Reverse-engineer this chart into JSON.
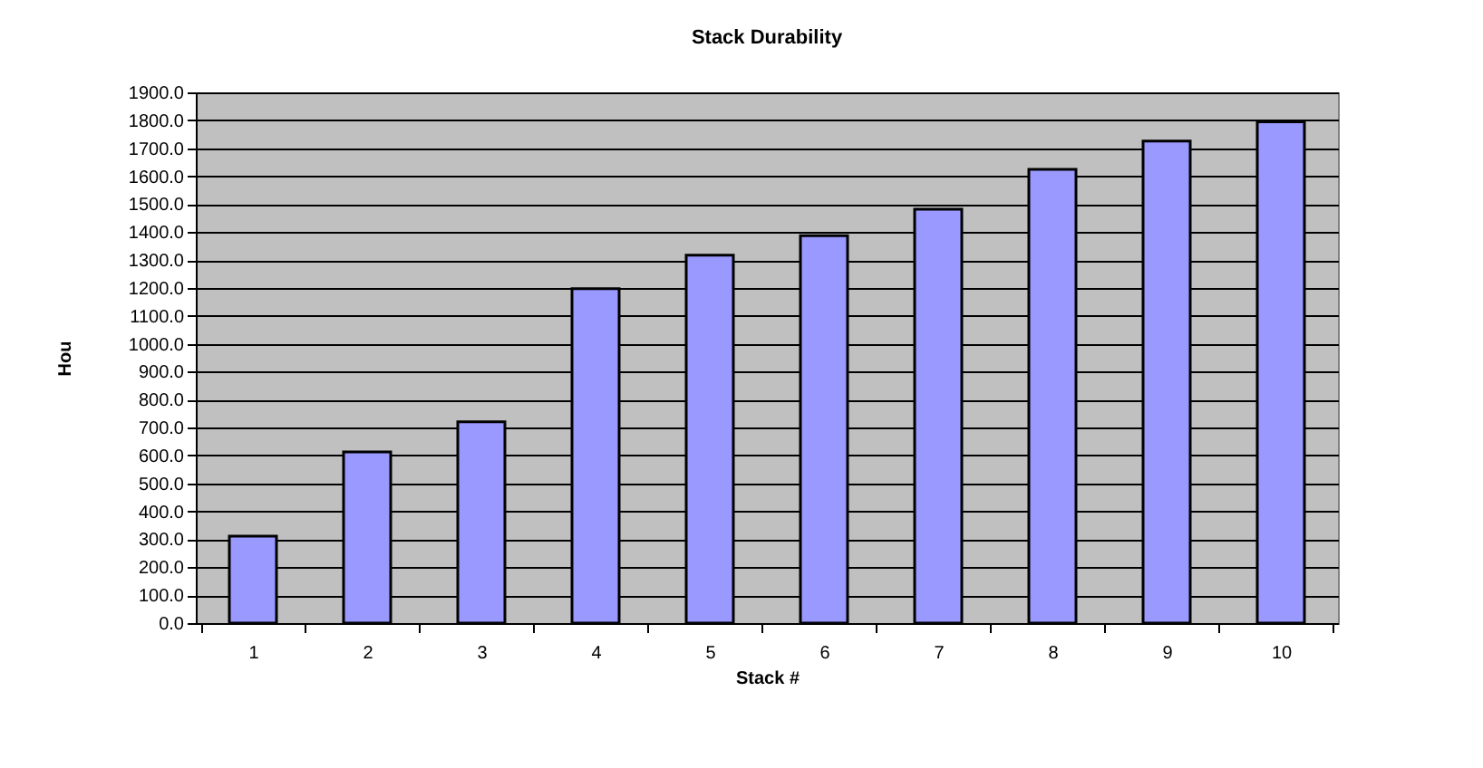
{
  "chart_data": {
    "type": "bar",
    "title": "Stack Durability",
    "xlabel": "Stack #",
    "ylabel": "Hou",
    "categories": [
      "1",
      "2",
      "3",
      "4",
      "5",
      "6",
      "7",
      "8",
      "9",
      "10"
    ],
    "values": [
      311,
      613,
      721,
      1197,
      1317,
      1387,
      1482,
      1624,
      1726,
      1795
    ],
    "color": "#9999ff",
    "ylim": [
      0,
      1900
    ],
    "yticks": [
      {
        "value": 0,
        "label": "0.0"
      },
      {
        "value": 100,
        "label": "100.0"
      },
      {
        "value": 200,
        "label": "200.0"
      },
      {
        "value": 300,
        "label": "300.0"
      },
      {
        "value": 400,
        "label": "400.0"
      },
      {
        "value": 500,
        "label": "500.0"
      },
      {
        "value": 600,
        "label": "600.0"
      },
      {
        "value": 700,
        "label": "700.0"
      },
      {
        "value": 800,
        "label": "800.0"
      },
      {
        "value": 900,
        "label": "900.0"
      },
      {
        "value": 1000,
        "label": "1000.0"
      },
      {
        "value": 1100,
        "label": "1100.0"
      },
      {
        "value": 1200,
        "label": "1200.0"
      },
      {
        "value": 1300,
        "label": "1300.0"
      },
      {
        "value": 1400,
        "label": "1400.0"
      },
      {
        "value": 1500,
        "label": "1500.0"
      },
      {
        "value": 1600,
        "label": "1600.0"
      },
      {
        "value": 1700,
        "label": "1700.0"
      },
      {
        "value": 1800,
        "label": "1800.0"
      },
      {
        "value": 1900,
        "label": "1900.0"
      }
    ],
    "grid": "y"
  }
}
